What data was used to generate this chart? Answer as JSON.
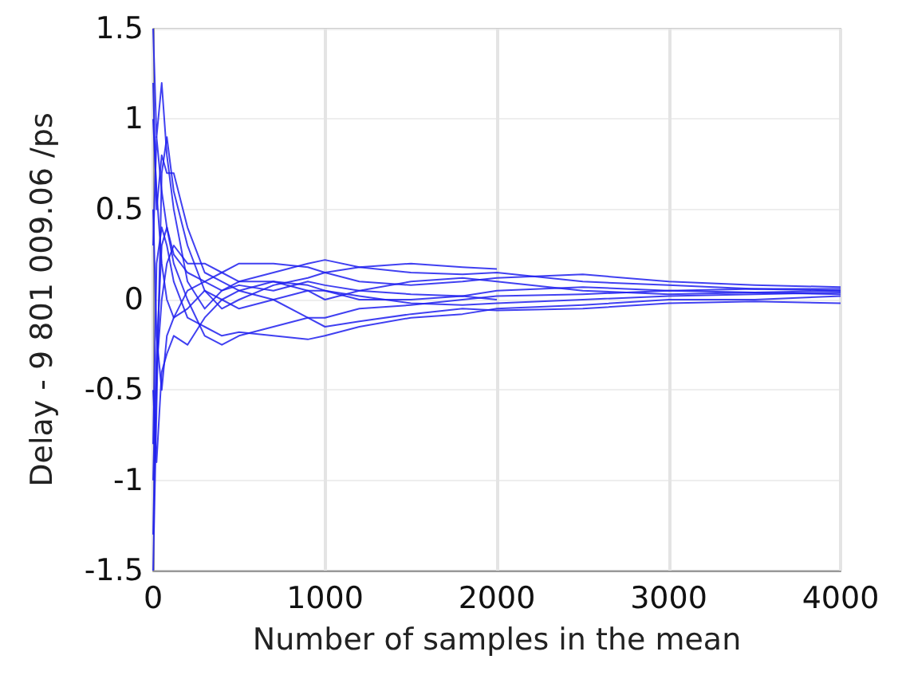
{
  "chart_data": {
    "type": "line",
    "xlabel": "Number of samples in the mean",
    "ylabel": "Delay - 9 801 009.06 /ps",
    "x": [
      0,
      20,
      50,
      80,
      120,
      200,
      300,
      400,
      500,
      700,
      900,
      1000,
      1200,
      1500,
      1800,
      2000,
      2500,
      3000,
      3500,
      4000
    ],
    "series": [
      {
        "color": "#1f1fef",
        "values": [
          1.5,
          0.9,
          1.2,
          0.8,
          0.5,
          0.1,
          -0.05,
          0.05,
          0.1,
          0.15,
          0.2,
          0.22,
          0.18,
          0.15,
          0.14,
          0.15,
          0.1,
          0.08,
          0.06,
          0.06
        ]
      },
      {
        "color": "#1f1fef",
        "values": [
          -1.5,
          -0.6,
          0.7,
          0.9,
          0.6,
          0.3,
          0.05,
          -0.05,
          0.0,
          0.08,
          0.12,
          0.15,
          0.1,
          0.08,
          0.1,
          0.12,
          0.14,
          0.1,
          0.08,
          0.07
        ]
      },
      {
        "color": "#1f1fef",
        "values": [
          1.2,
          0.5,
          0.8,
          0.7,
          0.7,
          0.4,
          0.15,
          0.1,
          0.05,
          0.0,
          -0.1,
          -0.15,
          -0.12,
          -0.08,
          -0.05,
          -0.06,
          -0.05,
          -0.02,
          -0.01,
          -0.02
        ]
      },
      {
        "color": "#1f1fef",
        "values": [
          -1.0,
          -0.3,
          0.3,
          0.4,
          0.2,
          0.0,
          -0.2,
          -0.25,
          -0.2,
          -0.15,
          -0.1,
          -0.1,
          -0.05,
          -0.03,
          0.0,
          0.02,
          0.03,
          0.05,
          0.06,
          0.05
        ]
      },
      {
        "color": "#1f1fef",
        "values": [
          0.5,
          -0.2,
          -0.5,
          -0.2,
          -0.1,
          0.05,
          0.1,
          0.15,
          0.1,
          0.1,
          0.05,
          0.0,
          0.05,
          0.1,
          0.12,
          0.1,
          0.05,
          0.03,
          0.04,
          0.03
        ]
      },
      {
        "color": "#1f1fef",
        "values": [
          -0.8,
          0.2,
          0.4,
          0.3,
          0.1,
          -0.1,
          -0.15,
          -0.2,
          -0.18,
          -0.2,
          -0.22,
          -0.2,
          -0.15,
          -0.1,
          -0.08,
          -0.05,
          -0.03,
          0.0,
          0.0,
          0.02
        ]
      },
      {
        "color": "#1f1fef",
        "values": [
          1.0,
          0.6,
          0.2,
          0.0,
          -0.1,
          -0.05,
          0.05,
          0.0,
          -0.05,
          0.0,
          0.05,
          0.05,
          0.0,
          0.0,
          0.02,
          0.0,
          null,
          null,
          null,
          null
        ]
      },
      {
        "color": "#1f1fef",
        "values": [
          -1.3,
          -0.4,
          0.0,
          0.2,
          0.3,
          0.2,
          0.2,
          0.15,
          0.2,
          0.2,
          0.18,
          0.15,
          0.18,
          0.2,
          0.18,
          0.17,
          null,
          null,
          null,
          null
        ]
      },
      {
        "color": "#1f1fef",
        "values": [
          0.3,
          0.9,
          0.6,
          0.4,
          0.25,
          0.15,
          0.1,
          0.05,
          0.08,
          0.05,
          0.1,
          0.08,
          0.05,
          0.03,
          0.02,
          0.05,
          0.07,
          0.05,
          0.04,
          0.05
        ]
      },
      {
        "color": "#1f1fef",
        "values": [
          -0.5,
          -0.9,
          -0.4,
          -0.3,
          -0.2,
          -0.25,
          -0.1,
          0.0,
          0.05,
          0.1,
          0.08,
          0.05,
          0.02,
          -0.02,
          -0.03,
          -0.02,
          0.0,
          0.02,
          0.03,
          0.04
        ]
      }
    ],
    "xlim": [
      0,
      4000
    ],
    "xticks": [
      0,
      1000,
      2000,
      3000,
      4000
    ],
    "ylim": [
      -1.5,
      1.5
    ],
    "yticks": [
      -1.5,
      -1,
      -0.5,
      0,
      0.5,
      1,
      1.5
    ],
    "grid": true,
    "marker": "none",
    "line_style": "solid"
  }
}
